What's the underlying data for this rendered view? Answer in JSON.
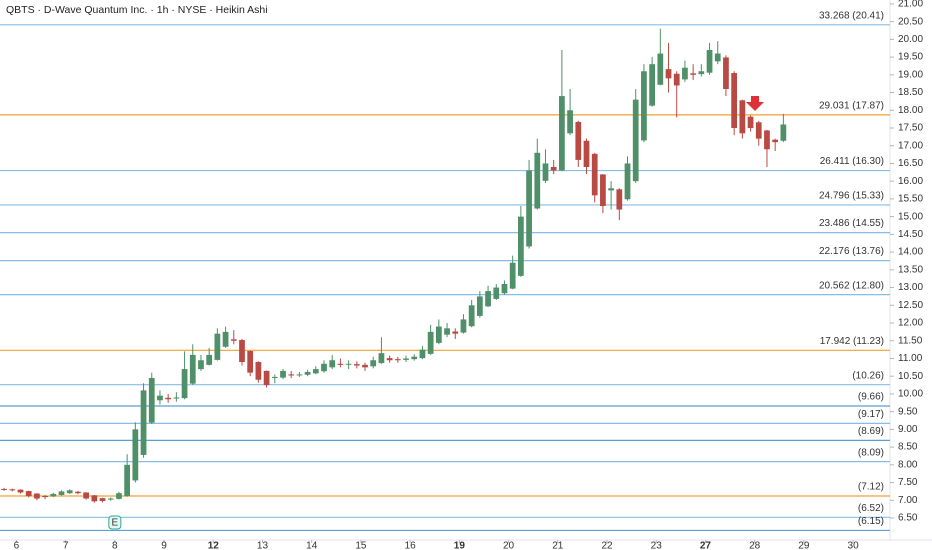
{
  "chart_data": {
    "type": "candlestick",
    "title": "QBTS · D-Wave Quantum Inc. · 1h · NYSE · Heikin Ashi",
    "x": [
      0,
      1,
      2,
      3,
      4,
      5,
      6,
      7,
      8,
      9,
      10,
      11,
      12,
      13,
      14,
      15,
      16,
      17,
      18,
      19,
      20,
      21,
      22,
      23,
      24,
      25,
      26,
      27,
      28,
      29,
      30,
      31,
      32,
      33,
      34,
      35,
      36,
      37,
      38,
      39,
      40,
      41,
      42,
      43,
      44,
      45,
      46,
      47,
      48,
      49,
      50,
      51,
      52,
      53,
      54,
      55,
      56,
      57,
      58,
      59,
      60,
      61,
      62,
      63,
      64,
      65,
      66,
      67,
      68,
      69,
      70,
      71,
      72,
      73,
      74,
      75,
      76,
      77,
      78,
      79,
      80,
      81,
      82,
      83,
      84,
      85,
      86,
      87,
      88,
      89,
      90,
      91,
      92,
      93,
      94,
      95
    ],
    "open": [
      7.32,
      7.31,
      7.3,
      7.26,
      7.19,
      7.12,
      7.11,
      7.15,
      7.2,
      7.24,
      7.22,
      7.14,
      7.06,
      7.02,
      7.04,
      7.12,
      7.56,
      8.28,
      9.19,
      9.82,
      9.89,
      9.87,
      9.88,
      10.29,
      10.7,
      10.82,
      10.96,
      11.33,
      11.54,
      11.52,
      11.21,
      10.9,
      10.65,
      10.45,
      10.46,
      10.55,
      10.54,
      10.54,
      10.58,
      10.64,
      10.75,
      10.85,
      10.84,
      10.84,
      10.82,
      10.78,
      10.87,
      11.01,
      10.98,
      10.96,
      10.98,
      11.01,
      11.13,
      11.44,
      11.67,
      11.76,
      11.73,
      11.91,
      12.2,
      12.47,
      12.68,
      12.84,
      12.97,
      13.33,
      14.16,
      15.23,
      16.01,
      16.4,
      16.3,
      17.35,
      17.67,
      17.14,
      16.77,
      16.19,
      15.74,
      15.77,
      15.49,
      16.0,
      17.15,
      18.13,
      18.72,
      19.16,
      19.03,
      18.87,
      19.04,
      19.02,
      19.06,
      19.38,
      19.49,
      19.05,
      18.28,
      17.82,
      17.66,
      17.43,
      17.17,
      17.14
    ],
    "high": [
      7.35,
      7.33,
      7.31,
      7.27,
      7.2,
      7.15,
      7.21,
      7.28,
      7.31,
      7.27,
      7.23,
      7.15,
      7.07,
      7.08,
      7.24,
      8.3,
      9.2,
      10.3,
      10.6,
      10.1,
      10.0,
      10.05,
      11.2,
      11.4,
      11.1,
      11.3,
      11.85,
      11.9,
      11.8,
      11.55,
      11.22,
      10.92,
      10.66,
      10.55,
      10.7,
      10.65,
      10.62,
      10.68,
      10.78,
      10.95,
      11.1,
      11.0,
      10.95,
      10.92,
      10.88,
      11.05,
      11.6,
      11.08,
      11.05,
      11.08,
      11.12,
      11.35,
      11.95,
      12.1,
      12.0,
      11.85,
      12.25,
      12.65,
      12.9,
      13.05,
      13.1,
      13.2,
      13.9,
      15.3,
      16.6,
      17.2,
      16.9,
      16.6,
      19.7,
      18.6,
      17.7,
      17.2,
      16.8,
      16.2,
      16.0,
      15.8,
      16.7,
      18.6,
      19.3,
      19.5,
      20.3,
      19.9,
      19.1,
      19.4,
      19.3,
      19.3,
      19.9,
      19.95,
      19.55,
      19.1,
      18.3,
      17.85,
      17.7,
      17.45,
      17.2,
      17.9
    ],
    "low": [
      7.27,
      7.25,
      7.19,
      7.08,
      7.0,
      7.03,
      7.09,
      7.13,
      7.18,
      7.17,
      7.02,
      6.93,
      6.94,
      6.99,
      7.02,
      7.1,
      7.5,
      8.2,
      9.15,
      9.7,
      9.75,
      9.78,
      9.85,
      10.25,
      10.65,
      10.8,
      10.94,
      11.3,
      11.4,
      10.8,
      10.5,
      10.32,
      10.18,
      10.3,
      10.42,
      10.45,
      10.48,
      10.5,
      10.55,
      10.6,
      10.7,
      10.75,
      10.7,
      10.72,
      10.65,
      10.72,
      10.85,
      10.88,
      10.88,
      10.9,
      10.94,
      10.98,
      11.1,
      11.4,
      11.6,
      11.55,
      11.7,
      11.88,
      12.15,
      12.45,
      12.65,
      12.8,
      12.95,
      13.3,
      14.1,
      15.2,
      15.95,
      16.2,
      16.28,
      17.3,
      16.4,
      16.2,
      15.4,
      15.1,
      15.2,
      14.9,
      15.45,
      15.95,
      17.1,
      18.1,
      18.7,
      18.5,
      17.8,
      18.8,
      18.85,
      18.95,
      19.0,
      19.3,
      18.4,
      17.3,
      17.2,
      17.4,
      17.0,
      16.4,
      16.85,
      17.1
    ],
    "close": [
      7.3,
      7.28,
      7.22,
      7.12,
      7.05,
      7.1,
      7.18,
      7.25,
      7.28,
      7.2,
      7.05,
      6.97,
      6.98,
      7.05,
      7.2,
      8.0,
      9.0,
      10.1,
      10.45,
      9.95,
      9.85,
      9.9,
      10.7,
      11.1,
      10.95,
      11.1,
      11.7,
      11.75,
      11.5,
      10.9,
      10.6,
      10.4,
      10.25,
      10.48,
      10.65,
      10.52,
      10.55,
      10.62,
      10.7,
      10.85,
      10.95,
      10.82,
      10.85,
      10.8,
      10.75,
      10.95,
      11.15,
      10.95,
      10.95,
      11.0,
      11.05,
      11.25,
      11.75,
      11.9,
      11.85,
      11.7,
      12.1,
      12.5,
      12.75,
      12.9,
      13.0,
      13.1,
      13.7,
      15.0,
      16.3,
      16.8,
      16.5,
      16.3,
      18.4,
      18.0,
      16.6,
      16.4,
      15.6,
      15.3,
      15.8,
      15.2,
      16.5,
      18.3,
      19.1,
      19.3,
      19.6,
      18.9,
      18.7,
      19.2,
      19.0,
      19.1,
      19.7,
      19.6,
      18.6,
      17.5,
      17.35,
      17.5,
      17.2,
      16.9,
      17.1,
      17.6
    ],
    "up_color": "#4f9068",
    "down_color": "#b84a43",
    "xlim": [
      -0.5,
      108
    ],
    "xticks": [
      {
        "value": 1.5,
        "label": "6"
      },
      {
        "value": 7.5,
        "label": "7"
      },
      {
        "value": 13.5,
        "label": "8"
      },
      {
        "value": 19.5,
        "label": "9"
      },
      {
        "value": 25.5,
        "label": "12"
      },
      {
        "value": 31.5,
        "label": "13"
      },
      {
        "value": 37.5,
        "label": "14"
      },
      {
        "value": 43.5,
        "label": "15"
      },
      {
        "value": 49.5,
        "label": "16"
      },
      {
        "value": 55.5,
        "label": "19"
      },
      {
        "value": 61.5,
        "label": "20"
      },
      {
        "value": 67.5,
        "label": "21"
      },
      {
        "value": 73.5,
        "label": "22"
      },
      {
        "value": 79.5,
        "label": "23"
      },
      {
        "value": 85.5,
        "label": "27"
      },
      {
        "value": 91.5,
        "label": "28"
      },
      {
        "value": 97.5,
        "label": "29"
      },
      {
        "value": 103.5,
        "label": "30"
      }
    ],
    "ylim": [
      5.88,
      21.11
    ],
    "yticks": [
      {
        "value": 6.5,
        "label": "6.50"
      },
      {
        "value": 7,
        "label": "7.00"
      },
      {
        "value": 7.5,
        "label": "7.50"
      },
      {
        "value": 8,
        "label": "8.00"
      },
      {
        "value": 8.5,
        "label": "8.50"
      },
      {
        "value": 9,
        "label": "9.00"
      },
      {
        "value": 9.5,
        "label": "9.50"
      },
      {
        "value": 10,
        "label": "10.00"
      },
      {
        "value": 10.5,
        "label": "10.50"
      },
      {
        "value": 11,
        "label": "11.00"
      },
      {
        "value": 11.5,
        "label": "11.50"
      },
      {
        "value": 12,
        "label": "12.00"
      },
      {
        "value": 12.5,
        "label": "12.50"
      },
      {
        "value": 13,
        "label": "13.00"
      },
      {
        "value": 13.5,
        "label": "13.50"
      },
      {
        "value": 14,
        "label": "14.00"
      },
      {
        "value": 14.5,
        "label": "14.50"
      },
      {
        "value": 15,
        "label": "15.00"
      },
      {
        "value": 15.5,
        "label": "15.50"
      },
      {
        "value": 16,
        "label": "16.00"
      },
      {
        "value": 16.5,
        "label": "16.50"
      },
      {
        "value": 17,
        "label": "17.00"
      },
      {
        "value": 17.5,
        "label": "17.50"
      },
      {
        "value": 18,
        "label": "18.00"
      },
      {
        "value": 18.5,
        "label": "18.50"
      },
      {
        "value": 19,
        "label": "19.00"
      },
      {
        "value": 19.5,
        "label": "19.50"
      },
      {
        "value": 20,
        "label": "20.00"
      },
      {
        "value": 20.5,
        "label": "20.50"
      },
      {
        "value": 21,
        "label": "21.00"
      }
    ],
    "levels": [
      {
        "value": 20.41,
        "label": "33.268 (20.41)",
        "color": "#86bde9"
      },
      {
        "value": 17.87,
        "label": "29.031 (17.87)",
        "color": "#f0a030"
      },
      {
        "value": 16.3,
        "label": "26.411 (16.30)",
        "color": "#86bde9"
      },
      {
        "value": 15.33,
        "label": "24.796 (15.33)",
        "color": "#86bde9"
      },
      {
        "value": 14.55,
        "label": "23.486 (14.55)",
        "color": "#86bde9"
      },
      {
        "value": 13.76,
        "label": "22.176 (13.76)",
        "color": "#86bde9"
      },
      {
        "value": 12.8,
        "label": "20.562 (12.80)",
        "color": "#86bde9"
      },
      {
        "value": 11.23,
        "label": "17.942 (11.23)",
        "color": "#f0a030"
      },
      {
        "value": 10.26,
        "label": "(10.26)",
        "color": "#86bde9"
      },
      {
        "value": 9.66,
        "label": "(9.66)",
        "color": "#5a9fd6"
      },
      {
        "value": 9.17,
        "label": "(9.17)",
        "color": "#86bde9"
      },
      {
        "value": 8.69,
        "label": "(8.69)",
        "color": "#5a9fd6"
      },
      {
        "value": 8.09,
        "label": "(8.09)",
        "color": "#86bde9"
      },
      {
        "value": 7.12,
        "label": "(7.12)",
        "color": "#f0a030"
      },
      {
        "value": 6.52,
        "label": "(6.52)",
        "color": "#86bde9"
      },
      {
        "value": 6.15,
        "label": "(6.15)",
        "color": "#5a9fd6"
      }
    ],
    "earnings_marker": {
      "text": "E",
      "x": 13.5
    }
  }
}
